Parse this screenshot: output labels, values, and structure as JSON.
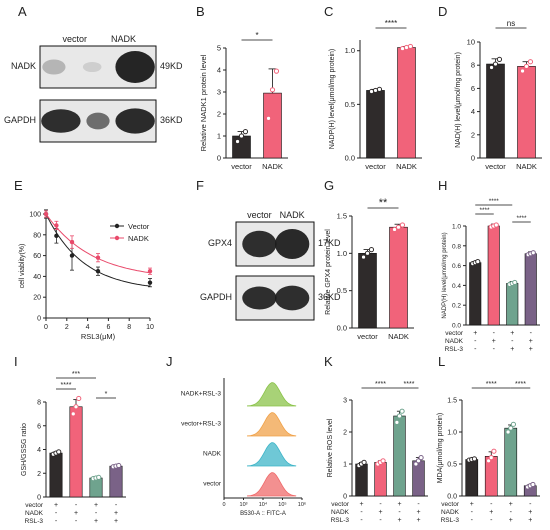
{
  "figure": {
    "panel_letters": [
      "A",
      "B",
      "C",
      "D",
      "E",
      "F",
      "G",
      "H",
      "I",
      "J",
      "K",
      "L"
    ]
  },
  "colors": {
    "dark": "#2f2b2b",
    "pink": "#f1637a",
    "green": "#6fa38e",
    "purple": "#7a6287",
    "blot_bg": "#e8e8e8",
    "line_vector": "#222222",
    "line_nadk": "#e94a6b"
  },
  "blot_A": {
    "lanes": [
      "vector",
      "NADK"
    ],
    "rows": [
      {
        "name": "NADK",
        "size": "49KD"
      },
      {
        "name": "GAPDH",
        "size": "36KD"
      }
    ]
  },
  "blot_F": {
    "lanes": [
      "vector",
      "NADK"
    ],
    "rows": [
      {
        "name": "GPX4",
        "size": "17KD"
      },
      {
        "name": "GAPDH",
        "size": "36KD"
      }
    ]
  },
  "flow_J": {
    "tracks": [
      "NADK+RSL-3",
      "vector+RSL-3",
      "NADK",
      "vector"
    ],
    "xlabel": "B530-A :: FITC-A",
    "ticks": [
      "0",
      "10³",
      "10⁴",
      "10⁵",
      "10⁶"
    ],
    "colors": [
      "#8bc34a",
      "#f0a24a",
      "#3fb5c8",
      "#ef6b6b"
    ]
  },
  "chart_data": [
    {
      "panel": "B",
      "type": "bar",
      "categories": [
        "vector",
        "NADK"
      ],
      "values": [
        1.0,
        2.95
      ],
      "errors": [
        0.2,
        1.1
      ],
      "points": [
        [
          0.75,
          1.0,
          1.2
        ],
        [
          1.8,
          3.1,
          3.95
        ]
      ],
      "ylabel": "Relative NADK1 protein  level",
      "ylim": [
        0,
        5
      ],
      "yticks": [
        0,
        1,
        2,
        3,
        4,
        5
      ],
      "sig": [
        {
          "text": "*",
          "from": 0,
          "to": 1
        }
      ]
    },
    {
      "panel": "C",
      "type": "bar",
      "categories": [
        "vector",
        "NADK"
      ],
      "values": [
        0.63,
        1.03
      ],
      "errors": [
        0.01,
        0.01
      ],
      "points": [
        [
          0.62,
          0.63,
          0.64
        ],
        [
          1.02,
          1.03,
          1.04
        ]
      ],
      "ylabel": "NADP(H) level(μmol/mg protein)",
      "ylim": [
        0,
        1.1
      ],
      "yticks": [
        0.0,
        0.5,
        1.0
      ],
      "sig": [
        {
          "text": "****",
          "from": 0,
          "to": 1
        }
      ]
    },
    {
      "panel": "D",
      "type": "bar",
      "categories": [
        "vector",
        "NADK"
      ],
      "values": [
        8.1,
        7.9
      ],
      "errors": [
        0.45,
        0.4
      ],
      "points": [
        [
          7.8,
          8.1,
          8.5
        ],
        [
          7.5,
          7.9,
          8.3
        ]
      ],
      "ylabel": "NAD(H) level(μmol/mg protein)",
      "ylim": [
        0,
        10
      ],
      "yticks": [
        0,
        2,
        4,
        6,
        8,
        10
      ],
      "sig": [
        {
          "text": "ns",
          "from": 0,
          "to": 1
        }
      ]
    },
    {
      "panel": "E",
      "type": "line",
      "x": [
        0,
        1,
        2.5,
        5,
        10
      ],
      "series": [
        {
          "name": "Vector",
          "values": [
            100,
            79,
            60,
            45,
            34
          ],
          "errors": [
            4,
            7,
            14,
            4,
            4
          ]
        },
        {
          "name": "NADK",
          "values": [
            100,
            89,
            73,
            58,
            45
          ],
          "errors": [
            3,
            4,
            6,
            4,
            3
          ]
        }
      ],
      "ylabel": "cell viablity(%)",
      "xlabel": "RSL3(μM)",
      "xlim": [
        0,
        10
      ],
      "xticks": [
        0,
        2,
        4,
        6,
        8,
        10
      ],
      "ylim": [
        0,
        100
      ],
      "yticks": [
        0,
        20,
        40,
        60,
        80,
        100
      ],
      "legend": "top-right"
    },
    {
      "panel": "G",
      "type": "bar",
      "categories": [
        "vector",
        "NADK"
      ],
      "values": [
        1.0,
        1.35
      ],
      "errors": [
        0.05,
        0.04
      ],
      "points": [
        [
          0.95,
          1.0,
          1.05
        ],
        [
          1.32,
          1.35,
          1.38
        ]
      ],
      "ylabel": "Relative GPX4 protein level",
      "ylim": [
        0,
        1.5
      ],
      "yticks": [
        0.0,
        0.5,
        1.0,
        1.5
      ],
      "sig": [
        {
          "text": "**",
          "from": 0,
          "to": 1
        }
      ]
    },
    {
      "panel": "H",
      "type": "bar",
      "categories": [
        "1",
        "2",
        "3",
        "4"
      ],
      "values": [
        0.63,
        1.0,
        0.42,
        0.72
      ],
      "errors": [
        0.01,
        0.02,
        0.02,
        0.02
      ],
      "points": [
        [
          0.62,
          0.63,
          0.64
        ],
        [
          0.99,
          1.0,
          1.01
        ],
        [
          0.41,
          0.42,
          0.43
        ],
        [
          0.71,
          0.72,
          0.73
        ]
      ],
      "ylabel": "NADP(H) level(μmol/mg protein)",
      "ylim": [
        0,
        1.0
      ],
      "yticks": [
        0.0,
        0.2,
        0.4,
        0.6,
        0.8,
        1.0
      ],
      "conditions": {
        "vector": [
          "+",
          "-",
          "+",
          "-"
        ],
        "NADK": [
          "-",
          "+",
          "-",
          "+"
        ],
        "RSL-3": [
          "-",
          "-",
          "+",
          "+"
        ]
      },
      "sig": [
        {
          "text": "****",
          "from": 0,
          "to": 2
        },
        {
          "text": "****",
          "from": 0,
          "to": 1
        },
        {
          "text": "****",
          "from": 2,
          "to": 3
        }
      ]
    },
    {
      "panel": "I",
      "type": "bar",
      "categories": [
        "1",
        "2",
        "3",
        "4"
      ],
      "values": [
        3.7,
        7.6,
        1.6,
        2.6
      ],
      "errors": [
        0.1,
        0.6,
        0.1,
        0.1
      ],
      "points": [
        [
          3.6,
          3.7,
          3.8
        ],
        [
          7.0,
          7.6,
          8.3
        ],
        [
          1.55,
          1.6,
          1.65
        ],
        [
          2.55,
          2.6,
          2.65
        ]
      ],
      "ylabel": "GSH/GSSG ratio",
      "ylim": [
        0,
        8
      ],
      "yticks": [
        0,
        2,
        4,
        6,
        8
      ],
      "conditions": {
        "vector": [
          "+",
          "-",
          "+",
          "-"
        ],
        "NADK": [
          "-",
          "+",
          "-",
          "+"
        ],
        "RSL-3": [
          "-",
          "-",
          "+",
          "+"
        ]
      },
      "sig": [
        {
          "text": "***",
          "from": 0,
          "to": 2
        },
        {
          "text": "****",
          "from": 0,
          "to": 1
        },
        {
          "text": "*",
          "from": 2,
          "to": 3
        }
      ]
    },
    {
      "panel": "K",
      "type": "bar",
      "categories": [
        "1",
        "2",
        "3",
        "4"
      ],
      "values": [
        1.0,
        1.05,
        2.5,
        1.1
      ],
      "errors": [
        0.05,
        0.05,
        0.15,
        0.1
      ],
      "points": [
        [
          0.95,
          1.0,
          1.05
        ],
        [
          1.0,
          1.05,
          1.1
        ],
        [
          2.3,
          2.5,
          2.65
        ],
        [
          1.0,
          1.1,
          1.2
        ]
      ],
      "ylabel": "Relative ROS level",
      "ylim": [
        0,
        3
      ],
      "yticks": [
        0,
        1,
        2,
        3
      ],
      "conditions": {
        "vector": [
          "+",
          "-",
          "+",
          "-"
        ],
        "NADK": [
          "-",
          "+",
          "-",
          "+"
        ],
        "RSL-3": [
          "-",
          "-",
          "+",
          "+"
        ]
      },
      "sig": [
        {
          "text": "****",
          "from": 0,
          "to": 2
        },
        {
          "text": "****",
          "from": 2,
          "to": 3
        }
      ]
    },
    {
      "panel": "L",
      "type": "bar",
      "categories": [
        "1",
        "2",
        "3",
        "4"
      ],
      "values": [
        0.57,
        0.62,
        1.06,
        0.16
      ],
      "errors": [
        0.01,
        0.07,
        0.05,
        0.02
      ],
      "points": [
        [
          0.56,
          0.57,
          0.58
        ],
        [
          0.55,
          0.6,
          0.7
        ],
        [
          1.0,
          1.06,
          1.12
        ],
        [
          0.14,
          0.16,
          0.18
        ]
      ],
      "ylabel": "MDA(μmol/mg protein)",
      "ylim": [
        0,
        1.5
      ],
      "yticks": [
        0.0,
        0.5,
        1.0,
        1.5
      ],
      "conditions": {
        "vector": [
          "+",
          "-",
          "+",
          "-"
        ],
        "NADK": [
          "-",
          "+",
          "-",
          "+"
        ],
        "RSL-3": [
          "-",
          "-",
          "+",
          "+"
        ]
      },
      "sig": [
        {
          "text": "****",
          "from": 0,
          "to": 2
        },
        {
          "text": "****",
          "from": 2,
          "to": 3
        }
      ]
    }
  ]
}
